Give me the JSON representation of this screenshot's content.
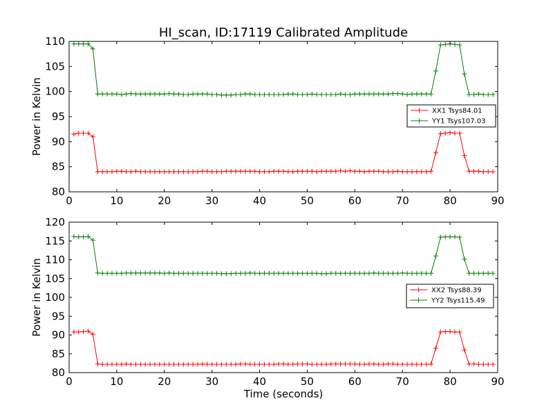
{
  "title": "HI_scan, ID:17119 Calibrated Amplitude",
  "colors": {
    "red": "#ff0000",
    "green": "#008000"
  },
  "chart_data": [
    {
      "type": "line",
      "ylabel": "Power in Kelvin",
      "xlabel": "",
      "xlim": [
        0,
        90
      ],
      "ylim": [
        80,
        110
      ],
      "xticks": [
        "0",
        "10",
        "20",
        "30",
        "40",
        "50",
        "60",
        "70",
        "80",
        "90"
      ],
      "yticks": [
        "80",
        "85",
        "90",
        "95",
        "100",
        "105",
        "110"
      ],
      "grid": false,
      "legend_position": "center-right",
      "series": [
        {
          "name": "XX1 Tsys84.01",
          "color": "#ff0000",
          "x": [
            1,
            2,
            3,
            4,
            5,
            6,
            7,
            8,
            9,
            10,
            11,
            12,
            13,
            14,
            15,
            16,
            17,
            18,
            19,
            20,
            21,
            22,
            23,
            24,
            25,
            26,
            27,
            28,
            29,
            30,
            31,
            32,
            33,
            34,
            35,
            36,
            37,
            38,
            39,
            40,
            41,
            42,
            43,
            44,
            45,
            46,
            47,
            48,
            49,
            50,
            51,
            52,
            53,
            54,
            55,
            56,
            57,
            58,
            59,
            60,
            61,
            62,
            63,
            64,
            65,
            66,
            67,
            68,
            69,
            70,
            71,
            72,
            73,
            74,
            75,
            76,
            77,
            78,
            79,
            80,
            81,
            82,
            83,
            84,
            85,
            86,
            87,
            88,
            89
          ],
          "y": [
            91.5,
            91.7,
            91.7,
            91.7,
            91.0,
            84.0,
            84.0,
            84.0,
            84.0,
            84.1,
            84.1,
            84.0,
            84.0,
            84.1,
            84.0,
            84.0,
            84.0,
            84.0,
            84.0,
            84.0,
            84.0,
            84.0,
            84.0,
            84.0,
            84.0,
            84.0,
            84.0,
            84.1,
            84.1,
            84.0,
            84.0,
            84.0,
            84.1,
            84.1,
            84.1,
            84.1,
            84.1,
            84.1,
            84.1,
            84.0,
            84.0,
            84.0,
            84.1,
            84.1,
            84.1,
            84.0,
            84.0,
            84.1,
            84.1,
            84.1,
            84.1,
            84.0,
            84.1,
            84.1,
            84.1,
            84.1,
            84.2,
            84.1,
            84.2,
            84.1,
            84.1,
            84.0,
            84.1,
            84.1,
            84.1,
            84.0,
            84.0,
            84.0,
            84.1,
            84.0,
            84.0,
            84.0,
            84.0,
            84.0,
            84.0,
            84.1,
            87.8,
            91.6,
            91.7,
            91.8,
            91.7,
            91.7,
            87.2,
            84.1,
            84.1,
            84.1,
            84.0,
            84.0,
            84.0
          ]
        },
        {
          "name": "YY1 Tsys107.03",
          "color": "#008000",
          "x": [
            1,
            2,
            3,
            4,
            5,
            6,
            7,
            8,
            9,
            10,
            11,
            12,
            13,
            14,
            15,
            16,
            17,
            18,
            19,
            20,
            21,
            22,
            23,
            24,
            25,
            26,
            27,
            28,
            29,
            30,
            31,
            32,
            33,
            34,
            35,
            36,
            37,
            38,
            39,
            40,
            41,
            42,
            43,
            44,
            45,
            46,
            47,
            48,
            49,
            50,
            51,
            52,
            53,
            54,
            55,
            56,
            57,
            58,
            59,
            60,
            61,
            62,
            63,
            64,
            65,
            66,
            67,
            68,
            69,
            70,
            71,
            72,
            73,
            74,
            75,
            76,
            77,
            78,
            79,
            80,
            81,
            82,
            83,
            84,
            85,
            86,
            87,
            88,
            89
          ],
          "y": [
            109.5,
            109.5,
            109.5,
            109.5,
            108.5,
            99.5,
            99.5,
            99.5,
            99.5,
            99.5,
            99.4,
            99.5,
            99.6,
            99.5,
            99.5,
            99.5,
            99.5,
            99.5,
            99.5,
            99.5,
            99.6,
            99.5,
            99.5,
            99.4,
            99.4,
            99.5,
            99.5,
            99.5,
            99.5,
            99.4,
            99.4,
            99.3,
            99.3,
            99.3,
            99.4,
            99.4,
            99.5,
            99.5,
            99.4,
            99.4,
            99.4,
            99.4,
            99.4,
            99.4,
            99.4,
            99.5,
            99.5,
            99.4,
            99.4,
            99.4,
            99.5,
            99.4,
            99.4,
            99.4,
            99.4,
            99.4,
            99.5,
            99.4,
            99.4,
            99.5,
            99.5,
            99.5,
            99.5,
            99.5,
            99.5,
            99.5,
            99.5,
            99.6,
            99.6,
            99.5,
            99.4,
            99.5,
            99.5,
            99.5,
            99.5,
            99.5,
            104.1,
            109.3,
            109.4,
            109.5,
            109.4,
            109.3,
            103.5,
            99.4,
            99.4,
            99.5,
            99.4,
            99.4,
            99.4
          ]
        }
      ]
    },
    {
      "type": "line",
      "ylabel": "Power in Kelvin",
      "xlabel": "Time (seconds)",
      "xlim": [
        0,
        90
      ],
      "ylim": [
        80,
        120
      ],
      "xticks": [
        "0",
        "10",
        "20",
        "30",
        "40",
        "50",
        "60",
        "70",
        "80",
        "90"
      ],
      "yticks": [
        "80",
        "85",
        "90",
        "95",
        "100",
        "105",
        "110",
        "115",
        "120"
      ],
      "grid": false,
      "legend_position": "center-right",
      "series": [
        {
          "name": "XX2 Tsys88.39",
          "color": "#ff0000",
          "x": [
            1,
            2,
            3,
            4,
            5,
            6,
            7,
            8,
            9,
            10,
            11,
            12,
            13,
            14,
            15,
            16,
            17,
            18,
            19,
            20,
            21,
            22,
            23,
            24,
            25,
            26,
            27,
            28,
            29,
            30,
            31,
            32,
            33,
            34,
            35,
            36,
            37,
            38,
            39,
            40,
            41,
            42,
            43,
            44,
            45,
            46,
            47,
            48,
            49,
            50,
            51,
            52,
            53,
            54,
            55,
            56,
            57,
            58,
            59,
            60,
            61,
            62,
            63,
            64,
            65,
            66,
            67,
            68,
            69,
            70,
            71,
            72,
            73,
            74,
            75,
            76,
            77,
            78,
            79,
            80,
            81,
            82,
            83,
            84,
            85,
            86,
            87,
            88,
            89
          ],
          "y": [
            90.8,
            90.8,
            90.9,
            91.0,
            90.2,
            82.3,
            82.2,
            82.2,
            82.2,
            82.2,
            82.2,
            82.3,
            82.2,
            82.2,
            82.2,
            82.2,
            82.2,
            82.2,
            82.2,
            82.2,
            82.2,
            82.2,
            82.2,
            82.2,
            82.2,
            82.2,
            82.2,
            82.3,
            82.2,
            82.2,
            82.2,
            82.2,
            82.2,
            82.2,
            82.2,
            82.3,
            82.3,
            82.2,
            82.2,
            82.2,
            82.2,
            82.2,
            82.2,
            82.3,
            82.3,
            82.2,
            82.2,
            82.3,
            82.3,
            82.3,
            82.2,
            82.2,
            82.2,
            82.2,
            82.3,
            82.3,
            82.3,
            82.3,
            82.3,
            82.3,
            82.2,
            82.2,
            82.3,
            82.3,
            82.2,
            82.2,
            82.3,
            82.3,
            82.2,
            82.2,
            82.2,
            82.2,
            82.2,
            82.2,
            82.2,
            82.3,
            86.5,
            90.8,
            90.9,
            90.9,
            90.8,
            90.8,
            86.0,
            82.3,
            82.3,
            82.2,
            82.2,
            82.2,
            82.2
          ]
        },
        {
          "name": "YY2 Tsys115.49",
          "color": "#008000",
          "x": [
            1,
            2,
            3,
            4,
            5,
            6,
            7,
            8,
            9,
            10,
            11,
            12,
            13,
            14,
            15,
            16,
            17,
            18,
            19,
            20,
            21,
            22,
            23,
            24,
            25,
            26,
            27,
            28,
            29,
            30,
            31,
            32,
            33,
            34,
            35,
            36,
            37,
            38,
            39,
            40,
            41,
            42,
            43,
            44,
            45,
            46,
            47,
            48,
            49,
            50,
            51,
            52,
            53,
            54,
            55,
            56,
            57,
            58,
            59,
            60,
            61,
            62,
            63,
            64,
            65,
            66,
            67,
            68,
            69,
            70,
            71,
            72,
            73,
            74,
            75,
            76,
            77,
            78,
            79,
            80,
            81,
            82,
            83,
            84,
            85,
            86,
            87,
            88,
            89
          ],
          "y": [
            116.2,
            116.1,
            116.1,
            116.2,
            115.2,
            106.5,
            106.4,
            106.4,
            106.4,
            106.4,
            106.4,
            106.5,
            106.5,
            106.5,
            106.5,
            106.5,
            106.5,
            106.5,
            106.5,
            106.4,
            106.5,
            106.4,
            106.4,
            106.4,
            106.4,
            106.4,
            106.4,
            106.4,
            106.4,
            106.4,
            106.4,
            106.3,
            106.3,
            106.3,
            106.4,
            106.4,
            106.4,
            106.5,
            106.4,
            106.4,
            106.4,
            106.4,
            106.4,
            106.4,
            106.4,
            106.4,
            106.4,
            106.4,
            106.4,
            106.4,
            106.4,
            106.4,
            106.3,
            106.3,
            106.4,
            106.4,
            106.4,
            106.4,
            106.4,
            106.4,
            106.4,
            106.4,
            106.4,
            106.5,
            106.4,
            106.4,
            106.4,
            106.4,
            106.4,
            106.5,
            106.4,
            106.4,
            106.4,
            106.4,
            106.4,
            106.4,
            111.0,
            116.0,
            116.1,
            116.1,
            116.1,
            116.0,
            110.2,
            106.4,
            106.4,
            106.4,
            106.4,
            106.4,
            106.4
          ]
        }
      ]
    }
  ]
}
